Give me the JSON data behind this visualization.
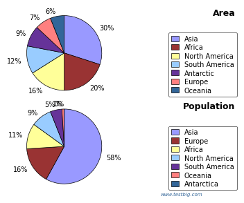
{
  "area": {
    "labels": [
      "Asia",
      "Africa",
      "North America",
      "South America",
      "Antarctic",
      "Europe",
      "Oceania"
    ],
    "values": [
      30,
      20,
      16,
      12,
      9,
      7,
      6
    ],
    "colors": [
      "#9999FF",
      "#993333",
      "#FFFF99",
      "#99CCFF",
      "#663399",
      "#FF8080",
      "#336699"
    ],
    "title": "Area"
  },
  "population": {
    "labels": [
      "Asia",
      "Europe",
      "Africa",
      "North America",
      "South America",
      "Oceania",
      "Antarctica"
    ],
    "values": [
      58,
      16,
      11,
      9,
      5,
      1,
      0
    ],
    "colors": [
      "#9999FF",
      "#993333",
      "#FFFF99",
      "#99CCFF",
      "#663399",
      "#FF8080",
      "#336699"
    ],
    "title": "Population"
  },
  "background_color": "#E0E0E0",
  "legend_fontsize": 7,
  "label_fontsize": 7,
  "watermark": "www.testbig.com"
}
